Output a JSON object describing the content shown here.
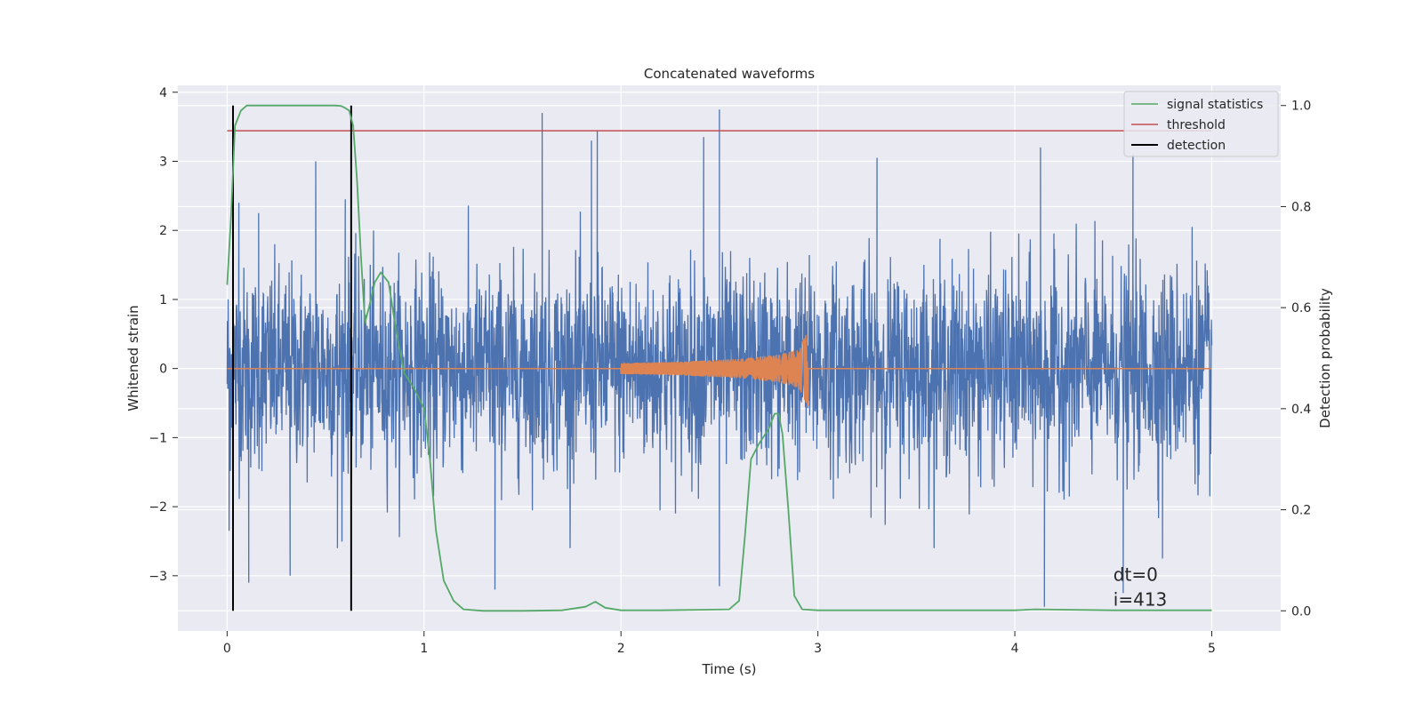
{
  "chart_data": {
    "type": "line",
    "title": "Concatenated waveforms",
    "xlabel": "Time (s)",
    "ylabel": "Whitened strain",
    "y2label": "Detection probability",
    "xlim": [
      -0.25,
      5.35
    ],
    "ylim": [
      -3.8,
      4.1
    ],
    "y2lim": [
      -0.04,
      1.04
    ],
    "x_ticks": [
      0,
      1,
      2,
      3,
      4,
      5
    ],
    "y_ticks": [
      -3,
      -2,
      -1,
      0,
      1,
      2,
      3,
      4
    ],
    "y2_ticks": [
      0.0,
      0.2,
      0.4,
      0.6,
      0.8,
      1.0
    ],
    "x_tick_labels": [
      "0",
      "1",
      "2",
      "3",
      "4",
      "5"
    ],
    "y_tick_labels": [
      "−3",
      "−2",
      "−1",
      "0",
      "1",
      "2",
      "3",
      "4"
    ],
    "y2_tick_labels": [
      "0.0",
      "0.2",
      "0.4",
      "0.6",
      "0.8",
      "1.0"
    ],
    "grid": true,
    "legend_position": "top-right",
    "series": [
      {
        "name": "",
        "kind": "noise",
        "axis": "left",
        "color": "#4c72b0",
        "x_range": [
          0,
          5
        ],
        "spike_points": [
          [
            0.01,
            -2.35
          ],
          [
            0.06,
            2.4
          ],
          [
            0.11,
            -3.1
          ],
          [
            0.16,
            2.25
          ],
          [
            0.32,
            -3.0
          ],
          [
            0.45,
            3.0
          ],
          [
            0.56,
            -2.6
          ],
          [
            0.6,
            2.45
          ],
          [
            1.36,
            -3.2
          ],
          [
            1.6,
            3.7
          ],
          [
            1.85,
            3.3
          ],
          [
            1.88,
            3.45
          ],
          [
            2.5,
            3.75
          ],
          [
            2.42,
            3.35
          ],
          [
            2.5,
            -3.15
          ],
          [
            3.3,
            3.05
          ],
          [
            4.15,
            -3.45
          ],
          [
            4.13,
            3.2
          ],
          [
            4.55,
            -3.25
          ],
          [
            4.6,
            3.1
          ],
          [
            4.75,
            -2.75
          ],
          [
            4.9,
            2.05
          ],
          [
            4.99,
            -1.85
          ]
        ]
      },
      {
        "name": "",
        "kind": "chirp",
        "axis": "left",
        "color": "#dd8452",
        "x": [
          0,
          2.0,
          2.3,
          2.6,
          2.8,
          2.9,
          2.95,
          2.96,
          5
        ],
        "amplitude": [
          0,
          0.08,
          0.1,
          0.14,
          0.2,
          0.28,
          0.55,
          0,
          0
        ]
      },
      {
        "name": "signal statistics",
        "axis": "right",
        "color": "#55a868",
        "x": [
          0,
          0.02,
          0.04,
          0.07,
          0.1,
          0.15,
          0.2,
          0.3,
          0.4,
          0.5,
          0.55,
          0.58,
          0.6,
          0.62,
          0.64,
          0.66,
          0.68,
          0.7,
          0.72,
          0.75,
          0.78,
          0.82,
          0.86,
          0.9,
          0.95,
          1.0,
          1.03,
          1.06,
          1.1,
          1.15,
          1.2,
          1.3,
          1.5,
          1.7,
          1.82,
          1.87,
          1.92,
          2.0,
          2.2,
          2.4,
          2.55,
          2.6,
          2.63,
          2.66,
          2.7,
          2.75,
          2.78,
          2.8,
          2.82,
          2.85,
          2.88,
          2.92,
          3.0,
          3.5,
          4.0,
          4.1,
          4.5,
          5.0
        ],
        "y": [
          0.645,
          0.78,
          0.96,
          0.99,
          1.0,
          1.0,
          1.0,
          1.0,
          1.0,
          1.0,
          1.0,
          0.999,
          0.995,
          0.99,
          0.96,
          0.85,
          0.7,
          0.57,
          0.6,
          0.65,
          0.67,
          0.65,
          0.55,
          0.47,
          0.44,
          0.4,
          0.3,
          0.16,
          0.06,
          0.02,
          0.003,
          0.0,
          0.0,
          0.001,
          0.008,
          0.018,
          0.006,
          0.001,
          0.001,
          0.002,
          0.003,
          0.02,
          0.15,
          0.3,
          0.33,
          0.36,
          0.39,
          0.39,
          0.35,
          0.2,
          0.03,
          0.003,
          0.001,
          0.001,
          0.001,
          0.003,
          0.001,
          0.001
        ]
      },
      {
        "name": "threshold",
        "axis": "right",
        "color": "#c44e52",
        "x": [
          0,
          5
        ],
        "y": [
          0.95,
          0.95
        ]
      },
      {
        "name": "detection",
        "axis": "right",
        "color": "#000000",
        "vlines": [
          0.03,
          0.63
        ],
        "ymin": 0.0,
        "ymax": 1.0
      }
    ],
    "annotations": [
      "dt=0",
      "i=413"
    ],
    "annotation_position": [
      4.5,
      -3.1
    ]
  }
}
